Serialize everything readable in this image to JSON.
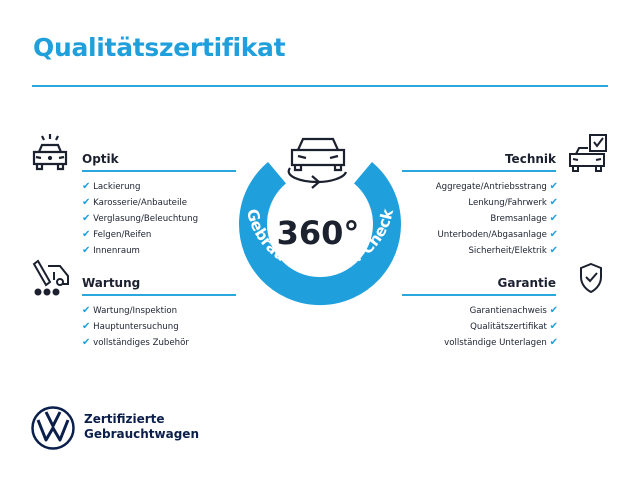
{
  "title": "Qualitätszertifikat",
  "accent": "#1fa0dc",
  "center": {
    "value": "360°",
    "ring_text": "Gebrauchtwagen-Check",
    "icon": "car-rotate-icon"
  },
  "sections": {
    "optik": {
      "title": "Optik",
      "icon": "car-lights-icon",
      "items": [
        "Lackierung",
        "Karosserie/Anbauteile",
        "Verglasung/Beleuchtung",
        "Felgen/Reifen",
        "Innenraum"
      ]
    },
    "wartung": {
      "title": "Wartung",
      "icon": "service-tools-icon",
      "items": [
        "Wartung/Inspektion",
        "Hauptuntersuchung",
        "vollständiges Zubehör"
      ]
    },
    "technik": {
      "title": "Technik",
      "icon": "car-checklist-icon",
      "items": [
        "Aggregate/Antriebsstrang",
        "Lenkung/Fahrwerk",
        "Bremsanlage",
        "Unterboden/Abgasanlage",
        "Sicherheit/Elektrik"
      ]
    },
    "garantie": {
      "title": "Garantie",
      "icon": "shield-check-icon",
      "items": [
        "Garantienachweis",
        "Qualitätszertifikat",
        "vollständige Unterlagen"
      ]
    }
  },
  "check_mark": "✔",
  "brand": {
    "line1": "Zertifizierte",
    "line2": "Gebrauchtwagen",
    "logo": "vw-logo"
  }
}
